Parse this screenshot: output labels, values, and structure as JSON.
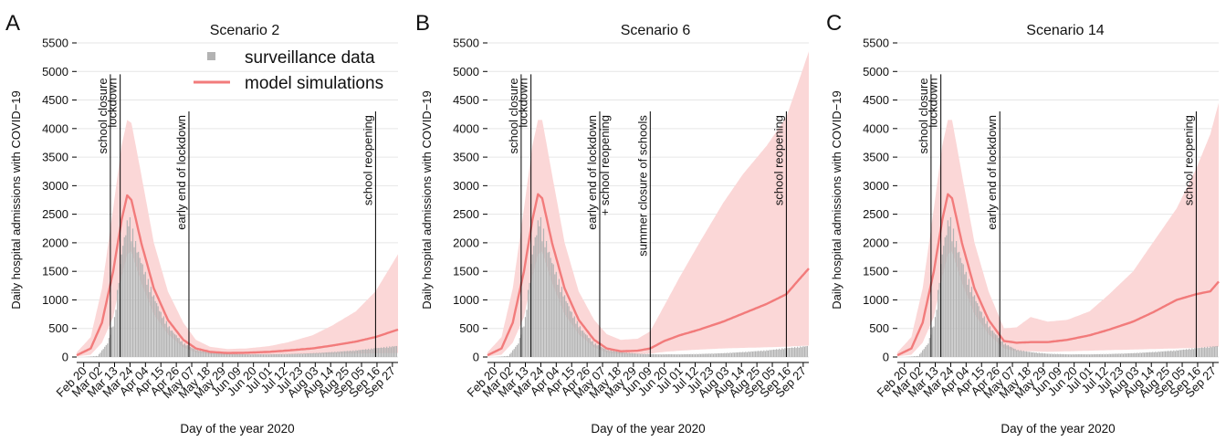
{
  "figure": {
    "legend": {
      "surveillance": "surveillance data",
      "model": "model simulations"
    },
    "colors": {
      "bars": "#b3b3b3",
      "model": "#f27b7b",
      "band": "#fbd7d7",
      "events": "#000000"
    }
  },
  "chart_data": [
    {
      "type": "area",
      "panel": "A",
      "title": "Scenario 2",
      "xlabel": "Day of the year 2020",
      "ylabel": "Daily hospital admissions with COVID−19",
      "ylim": [
        0,
        5500
      ],
      "yticks": [
        0,
        500,
        1000,
        1500,
        2000,
        2500,
        3000,
        3500,
        4000,
        4500,
        5000,
        5500
      ],
      "x_range": [
        "Feb 15",
        "Oct 01"
      ],
      "xticks": [
        "Feb 20",
        "Mar 02",
        "Mar 13",
        "Mar 24",
        "Apr 04",
        "Apr 15",
        "Apr 26",
        "May 07",
        "May 18",
        "May 29",
        "Jun 09",
        "Jun 20",
        "Jul 01",
        "Jul 12",
        "Jul 23",
        "Aug 03",
        "Aug 14",
        "Aug 25",
        "Sep 05",
        "Sep 16",
        "Sep 27"
      ],
      "xtick_labels": [
        "Feb 20",
        "Mar 02",
        "Mar 13",
        "Mar 24",
        "Apr 04",
        "Apr 15",
        "Apr 26",
        "May 07",
        "May 18",
        "May 29",
        "Jun 09",
        "Jun 20",
        "Jul 01",
        "Jul 12",
        "Jul 23",
        "Aug 03",
        "Aug 14",
        "Aug 25",
        "Sep 05",
        "Sep 16",
        "Sep 27"
      ],
      "grid": "horizontal",
      "legend_position": "top-right",
      "events": [
        {
          "date": "Mar 10",
          "label": "school closure"
        },
        {
          "date": "Mar 17",
          "label": "lockdown"
        },
        {
          "date": "May 05",
          "label": "early end of lockdown"
        },
        {
          "date": "Sep 15",
          "label": "school reopening"
        }
      ],
      "surveillance_data": {
        "x": [
          "Feb 20",
          "Mar 01",
          "Mar 08",
          "Mar 13",
          "Mar 18",
          "Mar 23",
          "Mar 28",
          "Apr 04",
          "Apr 10",
          "Apr 15",
          "Apr 22",
          "May 01",
          "May 10",
          "May 20",
          "Jun 01",
          "Jun 15",
          "Jul 01",
          "Jul 15",
          "Aug 01",
          "Aug 15",
          "Sep 01",
          "Sep 15",
          "Sep 30"
        ],
        "y": [
          0,
          20,
          250,
          700,
          1900,
          2550,
          2050,
          1500,
          1100,
          800,
          500,
          250,
          130,
          90,
          60,
          50,
          50,
          55,
          70,
          90,
          120,
          160,
          200
        ]
      },
      "model_simulations": {
        "x": [
          "Feb 15",
          "Feb 25",
          "Mar 04",
          "Mar 12",
          "Mar 18",
          "Mar 22",
          "Mar 25",
          "Apr 01",
          "Apr 10",
          "Apr 20",
          "May 01",
          "May 10",
          "May 20",
          "Jun 01",
          "Jun 15",
          "Jul 01",
          "Jul 15",
          "Aug 01",
          "Aug 15",
          "Sep 01",
          "Sep 15",
          "Oct 01"
        ],
        "median": [
          30,
          150,
          600,
          1500,
          2400,
          2830,
          2750,
          2000,
          1200,
          650,
          300,
          150,
          90,
          70,
          75,
          90,
          115,
          150,
          200,
          270,
          350,
          480
        ],
        "lower": [
          10,
          40,
          250,
          700,
          1400,
          1800,
          1850,
          1300,
          750,
          400,
          170,
          80,
          45,
          35,
          35,
          40,
          45,
          50,
          55,
          60,
          65,
          70
        ],
        "upper": [
          80,
          350,
          1200,
          2600,
          3700,
          4150,
          4100,
          3200,
          2000,
          1150,
          600,
          300,
          180,
          140,
          150,
          190,
          260,
          380,
          550,
          800,
          1150,
          1800
        ]
      }
    },
    {
      "type": "area",
      "panel": "B",
      "title": "Scenario 6",
      "xlabel": "Day of the year 2020",
      "ylabel": "Daily hospital admissions with COVID−19",
      "ylim": [
        0,
        5500
      ],
      "yticks": [
        0,
        500,
        1000,
        1500,
        2000,
        2500,
        3000,
        3500,
        4000,
        4500,
        5000,
        5500
      ],
      "x_range": [
        "Feb 15",
        "Oct 01"
      ],
      "xticks": [
        "Feb 20",
        "Mar 02",
        "Mar 13",
        "Mar 24",
        "Apr 04",
        "Apr 15",
        "Apr 26",
        "May 07",
        "May 18",
        "May 29",
        "Jun 09",
        "Jun 20",
        "Jul 01",
        "Jul 12",
        "Jul 23",
        "Aug 03",
        "Aug 14",
        "Aug 25",
        "Sep 05",
        "Sep 16",
        "Sep 27"
      ],
      "xtick_labels": [
        "Feb 20",
        "Mar 02",
        "Mar 13",
        "Mar 24",
        "Apr 04",
        "Apr 15",
        "Apr 26",
        "May 07",
        "May 18",
        "May 29",
        "Jun 09",
        "Jun 20",
        "Jul 01",
        "Jul 12",
        "Jul 23",
        "Aug 03",
        "Aug 14",
        "Aug 25",
        "Sep 05",
        "Sep 16",
        "Sep 27"
      ],
      "grid": "horizontal",
      "events": [
        {
          "date": "Mar 10",
          "label": "school closure"
        },
        {
          "date": "Mar 17",
          "label": "lockdown"
        },
        {
          "date": "May 05",
          "label": "early end of lockdown",
          "label2": "+ school reopening"
        },
        {
          "date": "Jun 10",
          "label": "summer closure of schools"
        },
        {
          "date": "Sep 15",
          "label": "school reopening"
        }
      ],
      "surveillance_data": {
        "x": [
          "Feb 20",
          "Mar 01",
          "Mar 08",
          "Mar 13",
          "Mar 18",
          "Mar 23",
          "Mar 28",
          "Apr 04",
          "Apr 10",
          "Apr 15",
          "Apr 22",
          "May 01",
          "May 10",
          "May 20",
          "Jun 01",
          "Jun 15",
          "Jul 01",
          "Jul 15",
          "Aug 01",
          "Aug 15",
          "Sep 01",
          "Sep 15",
          "Sep 30"
        ],
        "y": [
          0,
          20,
          250,
          700,
          1900,
          2550,
          2050,
          1500,
          1100,
          800,
          500,
          250,
          130,
          90,
          60,
          50,
          50,
          55,
          70,
          90,
          120,
          160,
          200
        ]
      },
      "model_simulations": {
        "x": [
          "Feb 15",
          "Feb 25",
          "Mar 04",
          "Mar 12",
          "Mar 18",
          "Mar 22",
          "Mar 25",
          "Apr 01",
          "Apr 10",
          "Apr 20",
          "May 01",
          "May 10",
          "May 20",
          "Jun 01",
          "Jun 10",
          "Jun 20",
          "Jul 01",
          "Jul 15",
          "Aug 01",
          "Aug 15",
          "Sep 01",
          "Sep 15",
          "Sep 22",
          "Oct 01"
        ],
        "median": [
          30,
          150,
          600,
          1500,
          2400,
          2850,
          2780,
          2000,
          1200,
          650,
          300,
          150,
          100,
          110,
          150,
          280,
          380,
          480,
          620,
          760,
          930,
          1100,
          1300,
          1550
        ],
        "lower": [
          10,
          40,
          250,
          700,
          1400,
          1800,
          1850,
          1300,
          750,
          400,
          170,
          80,
          50,
          50,
          60,
          90,
          110,
          130,
          150,
          160,
          170,
          180,
          190,
          200
        ],
        "upper": [
          80,
          350,
          1200,
          2600,
          3700,
          4150,
          4150,
          3200,
          2000,
          1150,
          650,
          400,
          300,
          320,
          450,
          900,
          1400,
          2000,
          2700,
          3200,
          3700,
          4200,
          4700,
          5350
        ]
      }
    },
    {
      "type": "area",
      "panel": "C",
      "title": "Scenario 14",
      "xlabel": "Day of the year 2020",
      "ylabel": "Daily hospital admissions with COVID−19",
      "ylim": [
        0,
        5500
      ],
      "yticks": [
        0,
        500,
        1000,
        1500,
        2000,
        2500,
        3000,
        3500,
        4000,
        4500,
        5000,
        5500
      ],
      "x_range": [
        "Feb 15",
        "Oct 01"
      ],
      "xticks": [
        "Feb 20",
        "Mar 02",
        "Mar 13",
        "Mar 24",
        "Apr 04",
        "Apr 15",
        "Apr 26",
        "May 07",
        "May 18",
        "May 29",
        "Jun 09",
        "Jun 20",
        "Jul 01",
        "Jul 12",
        "Jul 23",
        "Aug 03",
        "Aug 14",
        "Aug 25",
        "Sep 05",
        "Sep 16",
        "Sep 27"
      ],
      "xtick_labels": [
        "Feb 20",
        "Mar 02",
        "Mar 13",
        "Mar 24",
        "Apr 04",
        "Apr 15",
        "Apr 26",
        "May 07",
        "May 18",
        "May 29",
        "Jun 09",
        "Jun 20",
        "Jul 01",
        "Jul 12",
        "Jul 23",
        "Aug 03",
        "Aug 14",
        "Aug 25",
        "Sep 05",
        "Sep 16",
        "Sep 27"
      ],
      "grid": "horizontal",
      "events": [
        {
          "date": "Mar 10",
          "label": "school closure"
        },
        {
          "date": "Mar 17",
          "label": "lockdown"
        },
        {
          "date": "Apr 28",
          "label": "early end of lockdown"
        },
        {
          "date": "Sep 15",
          "label": "school reopening"
        }
      ],
      "surveillance_data": {
        "x": [
          "Feb 20",
          "Mar 01",
          "Mar 08",
          "Mar 13",
          "Mar 18",
          "Mar 23",
          "Mar 28",
          "Apr 04",
          "Apr 10",
          "Apr 15",
          "Apr 22",
          "May 01",
          "May 10",
          "May 20",
          "Jun 01",
          "Jun 15",
          "Jul 01",
          "Jul 15",
          "Aug 01",
          "Aug 15",
          "Sep 01",
          "Sep 15",
          "Sep 30"
        ],
        "y": [
          0,
          20,
          250,
          700,
          1900,
          2550,
          2050,
          1500,
          1100,
          800,
          500,
          250,
          130,
          90,
          60,
          50,
          50,
          55,
          70,
          90,
          120,
          160,
          200
        ]
      },
      "model_simulations": {
        "x": [
          "Feb 15",
          "Feb 25",
          "Mar 04",
          "Mar 12",
          "Mar 18",
          "Mar 22",
          "Mar 25",
          "Apr 01",
          "Apr 10",
          "Apr 20",
          "May 01",
          "May 10",
          "May 20",
          "Jun 01",
          "Jun 15",
          "Jul 01",
          "Jul 15",
          "Aug 01",
          "Aug 15",
          "Sep 01",
          "Sep 15",
          "Sep 25",
          "Oct 01"
        ],
        "median": [
          30,
          150,
          600,
          1500,
          2400,
          2850,
          2780,
          2000,
          1200,
          650,
          280,
          250,
          260,
          260,
          300,
          380,
          480,
          620,
          780,
          1000,
          1100,
          1150,
          1320
        ],
        "lower": [
          10,
          40,
          250,
          700,
          1400,
          1800,
          1850,
          1300,
          750,
          400,
          150,
          100,
          100,
          90,
          100,
          110,
          120,
          130,
          140,
          150,
          160,
          170,
          180
        ],
        "upper": [
          80,
          350,
          1200,
          2600,
          3700,
          4150,
          4150,
          3200,
          2000,
          1150,
          500,
          520,
          700,
          620,
          650,
          800,
          1100,
          1500,
          2000,
          2600,
          3300,
          3900,
          4450
        ]
      }
    }
  ]
}
